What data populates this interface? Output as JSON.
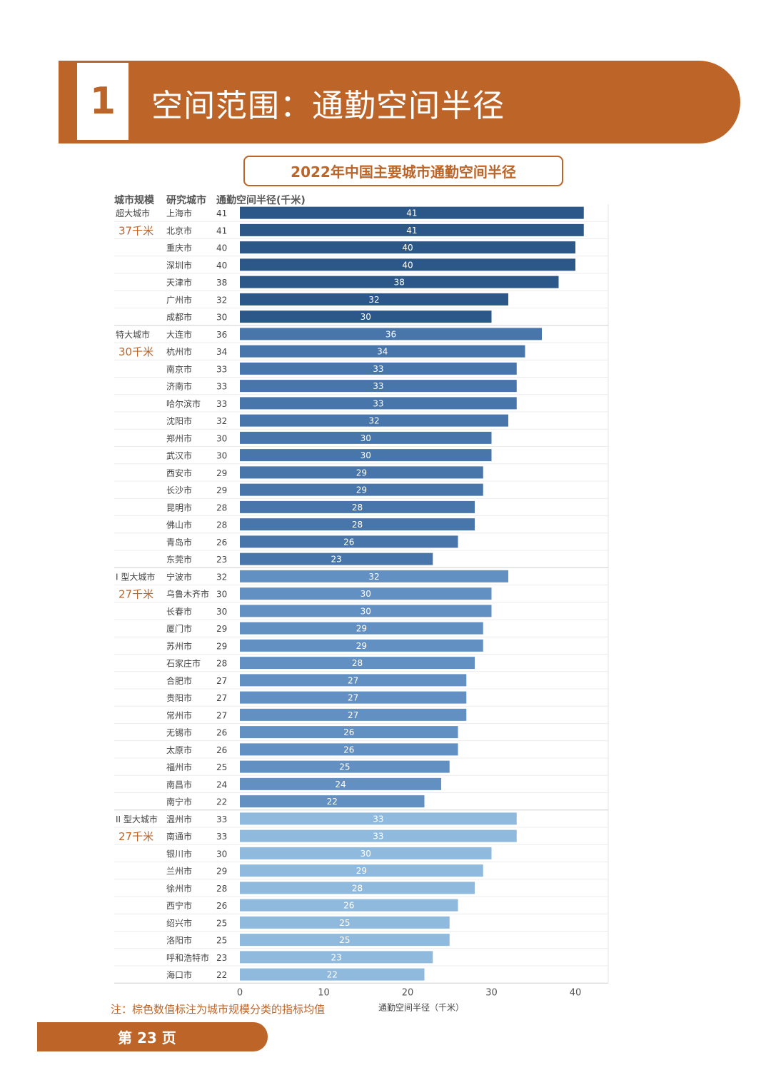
{
  "section": {
    "number": "1",
    "title": "空间范围：通勤空间半径"
  },
  "chart_title": "2022年中国主要城市通勤空间半径",
  "headers": {
    "scale": "城市规模",
    "city": "研究城市",
    "value": "通勤空间半径(千米)"
  },
  "note": "注：棕色数值标注为城市规模分类的指标均值",
  "page_label": "第 23 页",
  "colors": {
    "accent": "#bd6428",
    "group1": "#2b5888",
    "group2": "#4876aa",
    "group3": "#6390c2",
    "group4": "#8fbade"
  },
  "chart_data": {
    "type": "bar",
    "orientation": "horizontal",
    "title": "2022年中国主要城市通勤空间半径",
    "xlabel": "通勤空间半径（千米）",
    "xlim": [
      0,
      44
    ],
    "xticks": [
      0,
      10,
      20,
      30,
      40
    ],
    "groups": [
      {
        "name": "超大城市",
        "mean_label": "37千米",
        "cities": [
          "上海市",
          "北京市",
          "重庆市",
          "深圳市",
          "天津市",
          "广州市",
          "成都市"
        ],
        "values": [
          41,
          41,
          40,
          40,
          38,
          32,
          30
        ]
      },
      {
        "name": "特大城市",
        "mean_label": "30千米",
        "cities": [
          "大连市",
          "杭州市",
          "南京市",
          "济南市",
          "哈尔滨市",
          "沈阳市",
          "郑州市",
          "武汉市",
          "西安市",
          "长沙市",
          "昆明市",
          "佛山市",
          "青岛市",
          "东莞市"
        ],
        "values": [
          36,
          34,
          33,
          33,
          33,
          32,
          30,
          30,
          29,
          29,
          28,
          28,
          26,
          23
        ]
      },
      {
        "name": "I 型大城市",
        "mean_label": "27千米",
        "cities": [
          "宁波市",
          "乌鲁木齐市",
          "长春市",
          "厦门市",
          "苏州市",
          "石家庄市",
          "合肥市",
          "贵阳市",
          "常州市",
          "无锡市",
          "太原市",
          "福州市",
          "南昌市",
          "南宁市"
        ],
        "values": [
          32,
          30,
          30,
          29,
          29,
          28,
          27,
          27,
          27,
          26,
          26,
          25,
          24,
          22
        ]
      },
      {
        "name": "II 型大城市",
        "mean_label": "27千米",
        "cities": [
          "温州市",
          "南通市",
          "银川市",
          "兰州市",
          "徐州市",
          "西宁市",
          "绍兴市",
          "洛阳市",
          "呼和浩特市",
          "海口市"
        ],
        "values": [
          33,
          33,
          30,
          29,
          28,
          26,
          25,
          25,
          23,
          22
        ]
      }
    ]
  }
}
